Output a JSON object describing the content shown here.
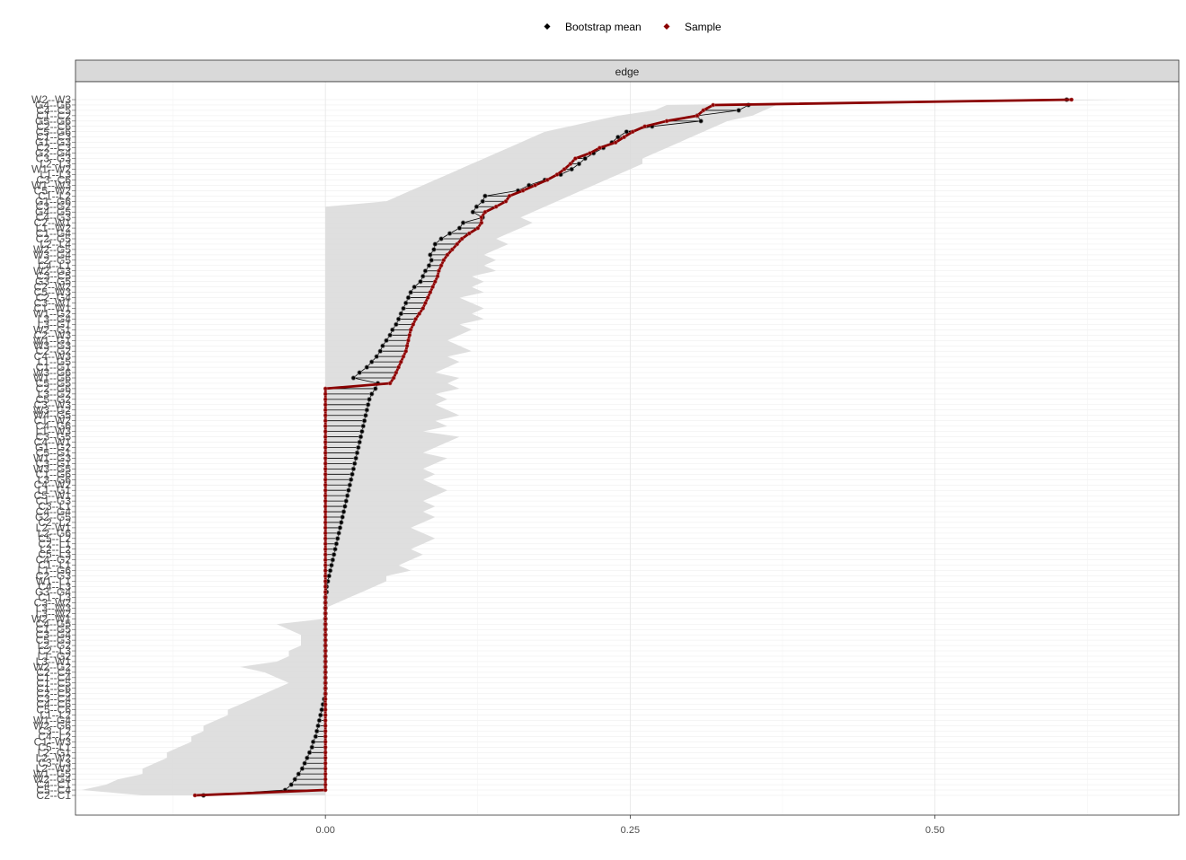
{
  "chart_data": {
    "type": "line",
    "facet_label": "edge",
    "xlabel": "",
    "ylabel": "",
    "xlim": [
      -0.205,
      0.7
    ],
    "x_ticks": [
      0.0,
      0.25,
      0.5
    ],
    "x_tick_labels": [
      "0.00",
      "0.25",
      "0.50"
    ],
    "grid": true,
    "legend_position": "top",
    "legend": [
      {
        "label": "Bootstrap mean",
        "color": "#000000"
      },
      {
        "label": "Sample",
        "color": "#8b0000"
      }
    ],
    "y_tick_labels": [
      "W2--W3",
      "G4--G6",
      "C4--C5",
      "C1--C2",
      "G5--G6",
      "C2--C6",
      "C5--G6",
      "C1--C3",
      "G1--G3",
      "C2--C3",
      "G2--G4",
      "C3--G3",
      "L2--L3",
      "W1--W2",
      "L1--L3",
      "C3--C6",
      "W1--W3",
      "C5--W2",
      "C1--L2",
      "G1--G6",
      "C3--G2",
      "G4--G5",
      "C4--G3",
      "C2--W1",
      "L1--W2",
      "C1--G4",
      "C2--G5",
      "L2--L4",
      "W2--G5",
      "W3--G4",
      "L2--G5",
      "C4--L1",
      "W2--G3",
      "C3--C5",
      "G3--G5",
      "C2--W2",
      "C5--W3",
      "C2--G4",
      "C3--W1",
      "C1--W1",
      "W1--G2",
      "L3--G4",
      "L3--G1",
      "W2--G1",
      "C2--W3",
      "W1--G1",
      "W3--G3",
      "C2--G2",
      "C4--W3",
      "L1--G5",
      "C1--G1",
      "W3--G6",
      "W1--G6",
      "C5--G5",
      "C2--G6",
      "L3--G2",
      "C5--G2",
      "C3--W3",
      "W3--G2",
      "W4--G5",
      "C1--W2",
      "C4--G6",
      "L1--W3",
      "C3--G5",
      "C4--W1",
      "G1--G2",
      "C5--G1",
      "W1--G3",
      "C3--G1",
      "W3--G5",
      "C1--G6",
      "L3--G6",
      "C4--W2",
      "L1--G1",
      "C5--W1",
      "C1--G3",
      "C3--L1",
      "C4--G4",
      "G2--G5",
      "C2--L2",
      "L2--W1",
      "L2--G6",
      "C5--L2",
      "C2--L1",
      "L2--L2",
      "C5--L3",
      "C4--G2",
      "C1--L1",
      "L1--G6",
      "C2--G3",
      "W1--L1",
      "C4--L3",
      "G3--G4",
      "C1--L3",
      "C3--W2",
      "L3--W3",
      "L3--W2",
      "W2--W1",
      "C4--G5",
      "C1--G5",
      "C3--G4",
      "C5--G3",
      "L2--G2",
      "C2--L3",
      "L1--G2",
      "L3--W1",
      "W2--G2",
      "C2--C4",
      "C1--C4",
      "C1--C5",
      "C1--C6",
      "C2--C5",
      "C3--C4",
      "C4--C6",
      "C5--C6",
      "L1--L2",
      "W1--G4",
      "W2--G6",
      "C3--L2",
      "C4--L2",
      "C1--W3",
      "C5--L1",
      "L2--G1",
      "L2--W2",
      "C3--L3",
      "L2--W3",
      "W1--G5",
      "W2--G4",
      "C4--C1",
      "C5--C4",
      "C2--C1"
    ],
    "series": [
      {
        "name": "Sample",
        "values": [
          0.612,
          0.318,
          0.31,
          0.305,
          0.28,
          0.262,
          0.252,
          0.245,
          0.238,
          0.225,
          0.217,
          0.205,
          0.201,
          0.196,
          0.19,
          0.182,
          0.172,
          0.162,
          0.151,
          0.148,
          0.14,
          0.131,
          0.128,
          0.128,
          0.125,
          0.118,
          0.112,
          0.108,
          0.104,
          0.1,
          0.097,
          0.095,
          0.093,
          0.092,
          0.09,
          0.088,
          0.086,
          0.084,
          0.082,
          0.08,
          0.077,
          0.074,
          0.072,
          0.07,
          0.069,
          0.068,
          0.067,
          0.066,
          0.064,
          0.062,
          0.06,
          0.058,
          0.056,
          0.053,
          0.0,
          0.0,
          0.0,
          0.0,
          0.0,
          0.0,
          0.0,
          0.0,
          0.0,
          0.0,
          0.0,
          0.0,
          0.0,
          0.0,
          0.0,
          0.0,
          0.0,
          0.0,
          0.0,
          0.0,
          0.0,
          0.0,
          0.0,
          0.0,
          0.0,
          0.0,
          0.0,
          0.0,
          0.0,
          0.0,
          0.0,
          0.0,
          0.0,
          0.0,
          0.0,
          0.0,
          0.0,
          0.0,
          0.0,
          0.0,
          0.0,
          0.0,
          0.0,
          0.0,
          0.0,
          0.0,
          0.0,
          0.0,
          0.0,
          0.0,
          0.0,
          0.0,
          0.0,
          0.0,
          0.0,
          0.0,
          0.0,
          0.0,
          0.0,
          0.0,
          0.0,
          0.0,
          0.0,
          0.0,
          0.0,
          0.0,
          0.0,
          0.0,
          0.0,
          0.0,
          0.0,
          0.0,
          0.0,
          0.0,
          0.0,
          0.0,
          -0.107
        ]
      },
      {
        "name": "Bootstrap mean",
        "values": [
          0.608,
          0.347,
          0.339,
          0.305,
          0.308,
          0.268,
          0.247,
          0.24,
          0.235,
          0.228,
          0.22,
          0.213,
          0.208,
          0.202,
          0.193,
          0.18,
          0.167,
          0.158,
          0.131,
          0.129,
          0.124,
          0.121,
          0.129,
          0.113,
          0.11,
          0.102,
          0.095,
          0.09,
          0.089,
          0.086,
          0.087,
          0.085,
          0.082,
          0.08,
          0.078,
          0.073,
          0.07,
          0.068,
          0.066,
          0.064,
          0.062,
          0.06,
          0.058,
          0.055,
          0.053,
          0.05,
          0.047,
          0.045,
          0.042,
          0.038,
          0.034,
          0.028,
          0.023,
          0.043,
          0.041,
          0.038,
          0.036,
          0.035,
          0.034,
          0.033,
          0.032,
          0.031,
          0.03,
          0.029,
          0.028,
          0.027,
          0.026,
          0.025,
          0.024,
          0.023,
          0.022,
          0.021,
          0.02,
          0.019,
          0.018,
          0.017,
          0.016,
          0.015,
          0.014,
          0.013,
          0.012,
          0.011,
          0.01,
          0.009,
          0.008,
          0.007,
          0.006,
          0.005,
          0.004,
          0.003,
          0.002,
          0.001,
          0.001,
          0.0,
          0.0,
          0.0,
          0.0,
          0.0,
          0.0,
          0.0,
          0.0,
          0.0,
          0.0,
          0.0,
          0.0,
          0.0,
          0.0,
          0.0,
          0.0,
          0.0,
          0.0,
          0.0,
          -0.001,
          -0.002,
          -0.003,
          -0.004,
          -0.005,
          -0.006,
          -0.007,
          -0.008,
          -0.01,
          -0.011,
          -0.013,
          -0.015,
          -0.017,
          -0.019,
          -0.022,
          -0.025,
          -0.028,
          -0.033,
          -0.1
        ]
      }
    ],
    "ci_band": {
      "lower": [
        0.56,
        0.28,
        0.27,
        0.24,
        0.22,
        0.2,
        0.18,
        0.17,
        0.16,
        0.15,
        0.14,
        0.13,
        0.12,
        0.11,
        0.1,
        0.09,
        0.08,
        0.07,
        0.06,
        0.05,
        0.0,
        0.0,
        0.0,
        0.0,
        0.0,
        0.0,
        0.0,
        0.0,
        0.0,
        0.0,
        0.0,
        0.0,
        0.0,
        0.0,
        0.0,
        0.0,
        0.0,
        0.0,
        0.0,
        0.0,
        0.0,
        0.0,
        0.0,
        0.0,
        0.0,
        0.0,
        0.0,
        0.0,
        0.0,
        0.0,
        0.0,
        0.0,
        0.0,
        0.0,
        0.0,
        0.0,
        0.0,
        0.0,
        0.0,
        0.0,
        0.0,
        0.0,
        0.0,
        0.0,
        0.0,
        0.0,
        0.0,
        0.0,
        0.0,
        0.0,
        0.0,
        0.0,
        0.0,
        0.0,
        0.0,
        0.0,
        0.0,
        0.0,
        0.0,
        0.0,
        0.0,
        0.0,
        0.0,
        0.0,
        0.0,
        0.0,
        0.0,
        0.0,
        0.0,
        0.0,
        0.0,
        0.0,
        0.0,
        0.0,
        0.0,
        0.0,
        0.0,
        0.0,
        -0.04,
        -0.03,
        -0.02,
        -0.02,
        -0.02,
        -0.03,
        -0.03,
        -0.04,
        -0.07,
        -0.05,
        -0.04,
        -0.03,
        -0.04,
        -0.05,
        -0.06,
        -0.07,
        -0.08,
        -0.08,
        -0.09,
        -0.1,
        -0.1,
        -0.11,
        -0.11,
        -0.12,
        -0.13,
        -0.13,
        -0.14,
        -0.15,
        -0.15,
        -0.17,
        -0.18,
        -0.2,
        -0.15
      ],
      "upper": [
        0.66,
        0.37,
        0.36,
        0.35,
        0.33,
        0.32,
        0.31,
        0.3,
        0.29,
        0.28,
        0.27,
        0.26,
        0.26,
        0.25,
        0.24,
        0.23,
        0.22,
        0.21,
        0.2,
        0.19,
        0.18,
        0.17,
        0.16,
        0.17,
        0.16,
        0.15,
        0.14,
        0.15,
        0.14,
        0.13,
        0.14,
        0.13,
        0.14,
        0.12,
        0.13,
        0.12,
        0.13,
        0.11,
        0.12,
        0.13,
        0.12,
        0.13,
        0.11,
        0.12,
        0.11,
        0.1,
        0.11,
        0.12,
        0.1,
        0.11,
        0.1,
        0.09,
        0.11,
        0.1,
        0.11,
        0.09,
        0.1,
        0.09,
        0.1,
        0.11,
        0.09,
        0.1,
        0.08,
        0.11,
        0.1,
        0.09,
        0.08,
        0.1,
        0.09,
        0.08,
        0.09,
        0.08,
        0.09,
        0.1,
        0.09,
        0.08,
        0.09,
        0.08,
        0.09,
        0.08,
        0.07,
        0.08,
        0.09,
        0.08,
        0.07,
        0.08,
        0.07,
        0.06,
        0.07,
        0.05,
        0.05,
        0.04,
        0.03,
        0.02,
        0.01,
        0.0,
        0.0,
        0.0,
        0.0,
        0.0,
        0.0,
        0.0,
        0.0,
        0.0,
        0.0,
        0.0,
        0.0,
        0.0,
        0.0,
        0.0,
        0.0,
        0.0,
        0.0,
        0.0,
        0.0,
        0.0,
        0.0,
        0.0,
        0.0,
        0.0,
        0.0,
        0.0,
        0.0,
        0.0,
        0.0,
        0.0,
        0.0,
        0.0,
        0.0,
        0.0,
        0.0
      ]
    }
  }
}
